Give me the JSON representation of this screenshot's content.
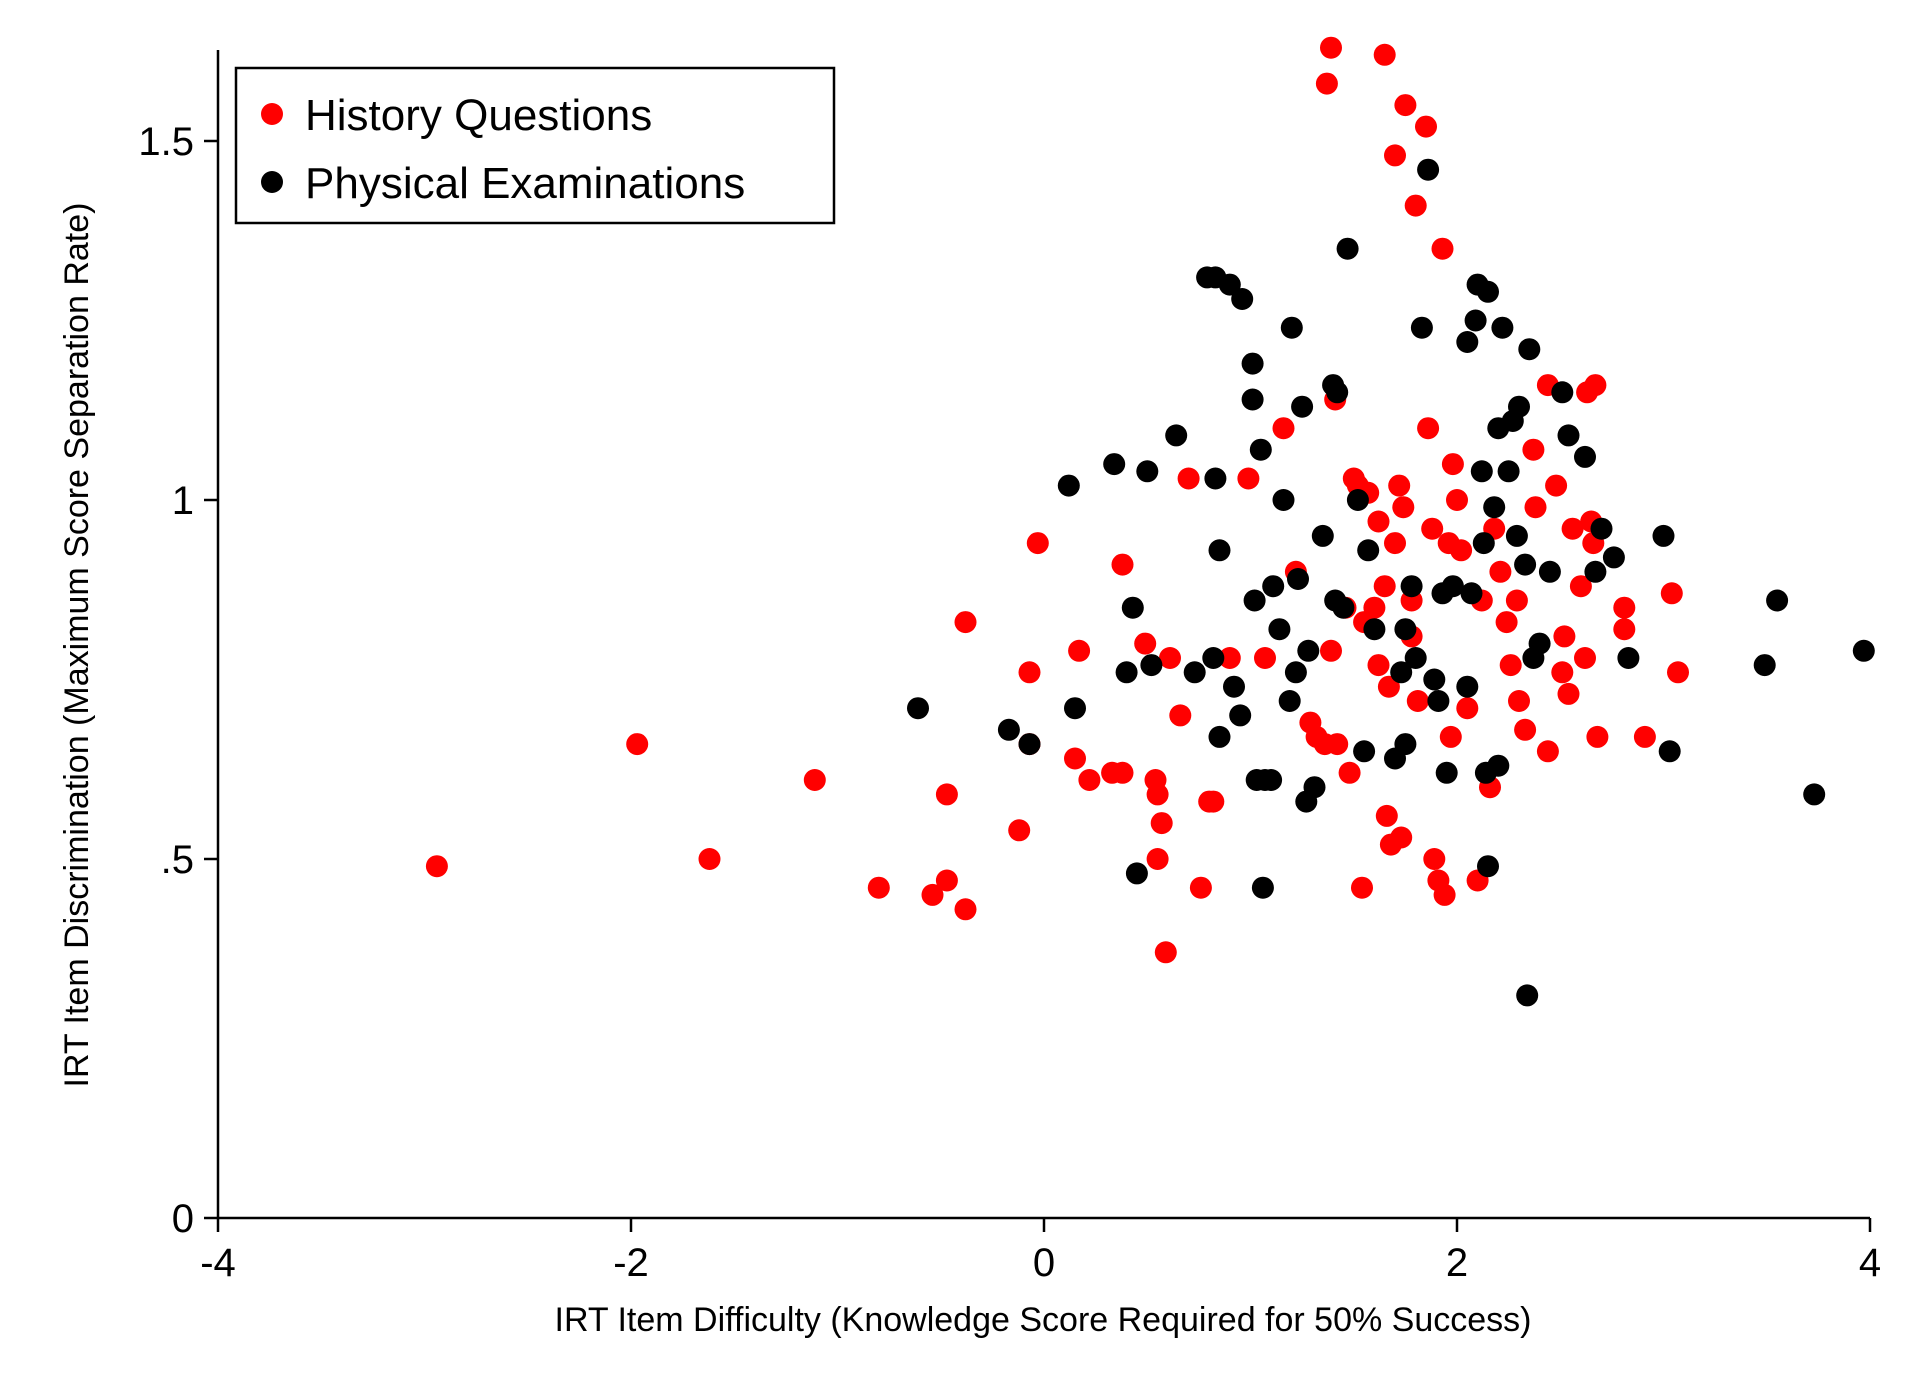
{
  "chart_data": {
    "type": "scatter",
    "title": "",
    "xlabel": "IRT Item Difficulty (Knowledge Score Required for 50% Success)",
    "ylabel": "IRT Item Discrimination (Maximum Score Separation Rate)",
    "xlim": [
      -4,
      4
    ],
    "ylim": [
      0,
      1.62
    ],
    "xticks": [
      -4,
      -2,
      0,
      2,
      4
    ],
    "xtick_labels": [
      "-4",
      "-2",
      "0",
      "2",
      "4"
    ],
    "yticks": [
      0,
      0.5,
      1,
      1.5
    ],
    "ytick_labels": [
      "0",
      ".5",
      "1",
      "1.5"
    ],
    "grid": false,
    "legend_position": "top-left",
    "series": [
      {
        "name": "History Questions",
        "color": "#ff0000",
        "points": [
          [
            -2.94,
            0.49
          ],
          [
            -1.97,
            0.66
          ],
          [
            -1.62,
            0.5
          ],
          [
            -1.11,
            0.61
          ],
          [
            -0.8,
            0.46
          ],
          [
            -0.54,
            0.45
          ],
          [
            -0.47,
            0.47
          ],
          [
            -0.47,
            0.59
          ],
          [
            -0.38,
            0.43
          ],
          [
            -0.38,
            0.83
          ],
          [
            -0.12,
            0.54
          ],
          [
            -0.07,
            0.76
          ],
          [
            -0.07,
            0.66
          ],
          [
            -0.03,
            0.94
          ],
          [
            0.15,
            0.64
          ],
          [
            0.17,
            0.79
          ],
          [
            0.22,
            0.61
          ],
          [
            0.33,
            0.62
          ],
          [
            0.38,
            0.62
          ],
          [
            0.38,
            0.91
          ],
          [
            0.49,
            0.8
          ],
          [
            0.54,
            0.61
          ],
          [
            0.55,
            0.59
          ],
          [
            0.57,
            0.55
          ],
          [
            0.55,
            0.5
          ],
          [
            0.59,
            0.37
          ],
          [
            0.61,
            0.78
          ],
          [
            0.66,
            0.7
          ],
          [
            0.7,
            1.03
          ],
          [
            0.76,
            0.46
          ],
          [
            0.8,
            0.58
          ],
          [
            0.82,
            0.58
          ],
          [
            0.9,
            0.78
          ],
          [
            0.99,
            1.03
          ],
          [
            1.07,
            0.78
          ],
          [
            1.16,
            1.1
          ],
          [
            1.22,
            0.9
          ],
          [
            1.29,
            0.69
          ],
          [
            1.32,
            0.67
          ],
          [
            1.36,
            0.66
          ],
          [
            1.41,
            1.14
          ],
          [
            1.37,
            1.58
          ],
          [
            1.39,
            1.63
          ],
          [
            1.39,
            0.79
          ],
          [
            1.42,
            0.66
          ],
          [
            1.48,
            0.62
          ],
          [
            1.5,
            1.03
          ],
          [
            1.54,
            0.46
          ],
          [
            1.55,
            0.83
          ],
          [
            1.6,
            0.85
          ],
          [
            1.62,
            0.77
          ],
          [
            1.65,
            1.62
          ],
          [
            1.66,
            0.56
          ],
          [
            1.68,
            0.52
          ],
          [
            1.7,
            1.48
          ],
          [
            1.73,
            0.53
          ],
          [
            1.75,
            1.55
          ],
          [
            1.78,
            0.86
          ],
          [
            1.8,
            1.41
          ],
          [
            1.85,
            1.52
          ],
          [
            1.86,
            1.1
          ],
          [
            1.88,
            0.96
          ],
          [
            1.89,
            0.5
          ],
          [
            1.91,
            0.47
          ],
          [
            1.94,
            0.45
          ],
          [
            1.93,
            1.35
          ],
          [
            1.96,
            0.94
          ],
          [
            1.97,
            0.67
          ],
          [
            1.98,
            1.05
          ],
          [
            2.0,
            1.0
          ],
          [
            2.02,
            0.93
          ],
          [
            2.05,
            0.71
          ],
          [
            2.1,
            0.47
          ],
          [
            2.12,
            0.86
          ],
          [
            2.16,
            0.6
          ],
          [
            2.18,
            0.96
          ],
          [
            2.21,
            0.9
          ],
          [
            2.24,
            0.83
          ],
          [
            2.26,
            0.77
          ],
          [
            2.29,
            0.86
          ],
          [
            2.3,
            0.72
          ],
          [
            2.33,
            0.68
          ],
          [
            2.37,
            1.07
          ],
          [
            2.38,
            0.99
          ],
          [
            2.44,
            0.65
          ],
          [
            2.44,
            1.16
          ],
          [
            2.48,
            1.02
          ],
          [
            2.51,
            0.76
          ],
          [
            2.52,
            0.81
          ],
          [
            2.54,
            0.73
          ],
          [
            2.56,
            0.96
          ],
          [
            2.6,
            0.88
          ],
          [
            2.62,
            0.78
          ],
          [
            2.63,
            1.15
          ],
          [
            2.65,
            0.97
          ],
          [
            2.66,
            0.94
          ],
          [
            2.67,
            1.16
          ],
          [
            2.68,
            0.67
          ],
          [
            2.81,
            0.85
          ],
          [
            2.81,
            0.82
          ],
          [
            2.91,
            0.67
          ],
          [
            3.04,
            0.87
          ],
          [
            3.07,
            0.76
          ],
          [
            1.65,
            0.88
          ],
          [
            1.7,
            0.94
          ],
          [
            1.74,
            0.99
          ],
          [
            1.78,
            0.81
          ],
          [
            1.81,
            0.72
          ],
          [
            1.67,
            0.74
          ],
          [
            1.62,
            0.97
          ],
          [
            1.57,
            1.01
          ],
          [
            1.52,
            1.02
          ],
          [
            1.46,
            0.85
          ],
          [
            1.72,
            1.02
          ]
        ]
      },
      {
        "name": "Physical Examinations",
        "color": "#000000",
        "points": [
          [
            -0.61,
            0.71
          ],
          [
            -0.17,
            0.68
          ],
          [
            -0.07,
            0.66
          ],
          [
            0.12,
            1.02
          ],
          [
            0.15,
            0.71
          ],
          [
            0.34,
            1.05
          ],
          [
            0.4,
            0.76
          ],
          [
            0.43,
            0.85
          ],
          [
            0.45,
            0.48
          ],
          [
            0.5,
            1.04
          ],
          [
            0.52,
            0.77
          ],
          [
            0.64,
            1.09
          ],
          [
            0.73,
            0.76
          ],
          [
            0.79,
            1.31
          ],
          [
            0.83,
            1.31
          ],
          [
            0.85,
            0.93
          ],
          [
            0.85,
            0.67
          ],
          [
            0.83,
            1.03
          ],
          [
            0.82,
            0.78
          ],
          [
            0.9,
            1.3
          ],
          [
            0.92,
            0.74
          ],
          [
            0.95,
            0.7
          ],
          [
            0.96,
            1.28
          ],
          [
            1.01,
            1.19
          ],
          [
            1.01,
            1.14
          ],
          [
            1.02,
            0.86
          ],
          [
            1.03,
            0.61
          ],
          [
            1.05,
            1.07
          ],
          [
            1.06,
            0.46
          ],
          [
            1.07,
            0.61
          ],
          [
            1.1,
            0.61
          ],
          [
            1.11,
            0.88
          ],
          [
            1.14,
            0.82
          ],
          [
            1.16,
            1.0
          ],
          [
            1.19,
            0.72
          ],
          [
            1.2,
            1.24
          ],
          [
            1.22,
            0.76
          ],
          [
            1.23,
            0.89
          ],
          [
            1.25,
            1.13
          ],
          [
            1.27,
            0.58
          ],
          [
            1.28,
            0.79
          ],
          [
            1.31,
            0.6
          ],
          [
            1.4,
            1.16
          ],
          [
            1.42,
            1.15
          ],
          [
            1.41,
            0.86
          ],
          [
            1.45,
            0.85
          ],
          [
            1.47,
            1.35
          ],
          [
            1.52,
            1.0
          ],
          [
            1.55,
            0.65
          ],
          [
            1.57,
            0.93
          ],
          [
            1.7,
            0.64
          ],
          [
            1.73,
            0.76
          ],
          [
            1.75,
            0.66
          ],
          [
            1.75,
            0.82
          ],
          [
            1.78,
            0.88
          ],
          [
            1.8,
            0.78
          ],
          [
            1.83,
            1.24
          ],
          [
            1.86,
            1.46
          ],
          [
            1.89,
            0.75
          ],
          [
            1.91,
            0.72
          ],
          [
            1.93,
            0.87
          ],
          [
            1.95,
            0.62
          ],
          [
            2.05,
            0.74
          ],
          [
            2.05,
            1.22
          ],
          [
            2.07,
            0.87
          ],
          [
            2.09,
            1.25
          ],
          [
            2.1,
            1.3
          ],
          [
            2.12,
            1.04
          ],
          [
            2.13,
            0.94
          ],
          [
            2.14,
            0.62
          ],
          [
            2.15,
            1.29
          ],
          [
            2.15,
            0.49
          ],
          [
            2.18,
            0.99
          ],
          [
            2.2,
            1.1
          ],
          [
            2.2,
            0.63
          ],
          [
            2.22,
            1.24
          ],
          [
            2.25,
            1.04
          ],
          [
            2.27,
            1.11
          ],
          [
            2.29,
            0.95
          ],
          [
            2.3,
            1.13
          ],
          [
            2.33,
            0.91
          ],
          [
            2.34,
            0.31
          ],
          [
            2.35,
            1.21
          ],
          [
            2.37,
            0.78
          ],
          [
            2.45,
            0.9
          ],
          [
            2.51,
            1.15
          ],
          [
            2.54,
            1.09
          ],
          [
            2.62,
            1.06
          ],
          [
            2.67,
            0.9
          ],
          [
            2.7,
            0.96
          ],
          [
            2.76,
            0.92
          ],
          [
            2.83,
            0.78
          ],
          [
            3.0,
            0.95
          ],
          [
            3.03,
            0.65
          ],
          [
            3.49,
            0.77
          ],
          [
            3.55,
            0.86
          ],
          [
            3.73,
            0.59
          ],
          [
            3.97,
            0.79
          ],
          [
            1.35,
            0.95
          ],
          [
            1.6,
            0.82
          ],
          [
            1.98,
            0.88
          ],
          [
            2.4,
            0.8
          ]
        ]
      }
    ]
  }
}
